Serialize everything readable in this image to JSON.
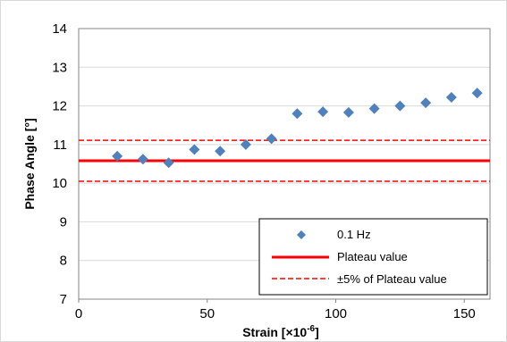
{
  "chart_data": {
    "type": "scatter",
    "xlabel": "Strain [×10",
    "xlabel_sup": "-6",
    "xlabel_suffix": "]",
    "ylabel": "Phase Angle [°]",
    "xlim": [
      0,
      160
    ],
    "ylim": [
      7,
      14
    ],
    "x_ticks": [
      "0",
      "50",
      "100",
      "150"
    ],
    "y_ticks": [
      "7",
      "8",
      "9",
      "10",
      "11",
      "12",
      "13",
      "14"
    ],
    "grid": "horizontal",
    "legend_position": "bottom-right",
    "series": [
      {
        "name": "0.1 Hz",
        "marker": "diamond",
        "color": "#4F81BD",
        "x": [
          15,
          25,
          35,
          45,
          55,
          65,
          75,
          85,
          95,
          105,
          115,
          125,
          135,
          145,
          155
        ],
        "y": [
          10.7,
          10.62,
          10.53,
          10.87,
          10.83,
          11.0,
          11.15,
          11.8,
          11.85,
          11.83,
          11.93,
          12.0,
          12.08,
          12.22,
          12.33
        ]
      }
    ],
    "reference_lines": [
      {
        "name": "Plateau value",
        "y": 10.58,
        "color": "#FF0000",
        "style": "solid"
      },
      {
        "name": "±5% of Plateau value",
        "y": 11.11,
        "color": "#FF0000",
        "style": "dashed"
      },
      {
        "name": "",
        "y": 10.05,
        "color": "#FF0000",
        "style": "dashed"
      }
    ],
    "legend": [
      "0.1 Hz",
      "Plateau value",
      "±5% of Plateau value"
    ]
  }
}
